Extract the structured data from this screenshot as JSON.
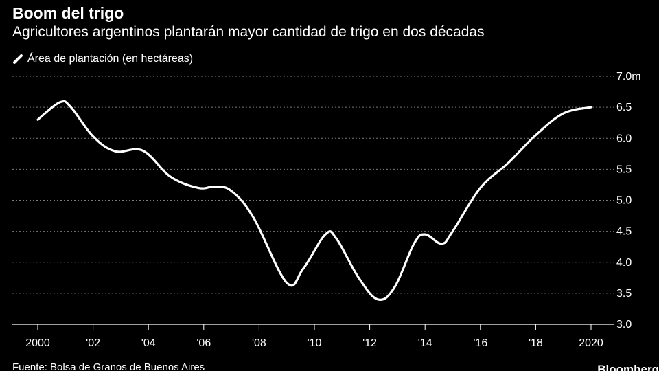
{
  "chart_data": {
    "type": "line",
    "title": "Boom del trigo",
    "subtitle": "Agricultores argentinos plantarán mayor cantidad de trigo en dos décadas",
    "legend": [
      "Área de plantación (en hectáreas)"
    ],
    "x_tick_labels": [
      "2000",
      "'02",
      "'04",
      "'06",
      "'08",
      "'10",
      "'12",
      "'14",
      "'16",
      "'18",
      "2020"
    ],
    "x_ticks": [
      2000,
      2002,
      2004,
      2006,
      2008,
      2010,
      2012,
      2014,
      2016,
      2018,
      2020
    ],
    "y_tick_labels": [
      "3.0",
      "3.5",
      "4.0",
      "4.5",
      "5.0",
      "5.5",
      "6.0",
      "6.5",
      "7.0m"
    ],
    "y_ticks": [
      3.0,
      3.5,
      4.0,
      4.5,
      5.0,
      5.5,
      6.0,
      6.5,
      7.0
    ],
    "xlim": [
      2000,
      2020
    ],
    "ylim": [
      3.0,
      7.0
    ],
    "series": [
      {
        "name": "Área de plantación (en hectáreas)",
        "x": [
          2000,
          2000.8,
          2001.2,
          2002,
          2002.8,
          2003.8,
          2004.8,
          2005.8,
          2006.4,
          2007,
          2007.8,
          2009,
          2009.6,
          2010.4,
          2010.8,
          2011.6,
          2012.3,
          2012.9,
          2013.6,
          2014,
          2014.6,
          2015,
          2016,
          2017,
          2018,
          2019,
          2020
        ],
        "values": [
          6.3,
          6.58,
          6.5,
          6.03,
          5.79,
          5.8,
          5.38,
          5.2,
          5.22,
          5.15,
          4.72,
          3.67,
          3.9,
          4.45,
          4.38,
          3.75,
          3.4,
          3.6,
          4.3,
          4.45,
          4.3,
          4.5,
          5.2,
          5.6,
          6.05,
          6.4,
          6.5
        ]
      }
    ],
    "grid": "horizontal dotted",
    "legend_position": "top-left",
    "colors": {
      "background": "#000000",
      "line": "#ffffff",
      "grid": "#7a7a7a",
      "text": "#ffffff"
    }
  },
  "footer": {
    "source": "Fuente: Bolsa de Granos de Buenos Aires",
    "brand": "Bloomberg"
  }
}
